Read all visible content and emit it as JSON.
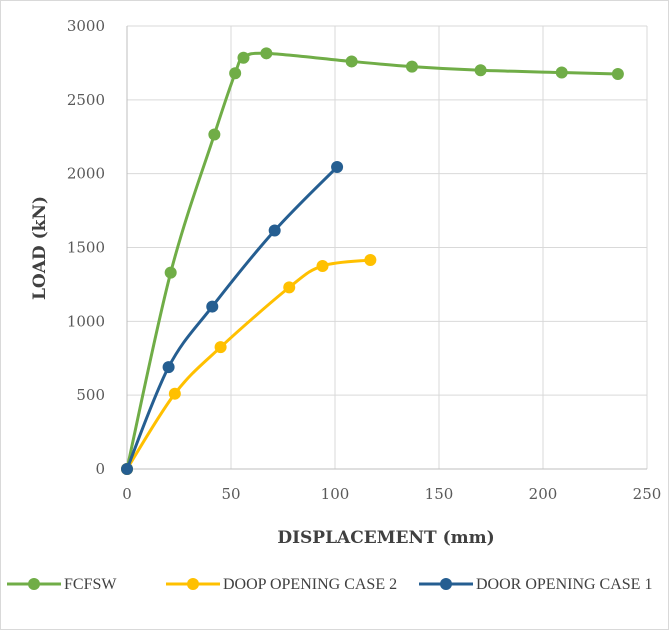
{
  "chart_data": {
    "type": "line",
    "title": "",
    "xlabel": "DISPLACEMENT (mm)",
    "ylabel": "LOAD (kN)",
    "xlim": [
      0,
      250
    ],
    "ylim": [
      0,
      3000
    ],
    "xticks": [
      0,
      50,
      100,
      150,
      200,
      250
    ],
    "yticks": [
      0,
      500,
      1000,
      1500,
      2000,
      2500,
      3000
    ],
    "grid": true,
    "legend_position": "bottom",
    "series": [
      {
        "name": "FCFSW",
        "color": "#70ad47",
        "x": [
          0,
          21,
          42,
          52,
          56,
          67,
          108,
          137,
          170,
          209,
          236
        ],
        "y": [
          0,
          1330,
          2265,
          2680,
          2785,
          2815,
          2760,
          2725,
          2700,
          2685,
          2675
        ]
      },
      {
        "name": "DOOP OPENING CASE 2",
        "color": "#ffc000",
        "x": [
          0,
          23,
          45,
          78,
          94,
          117
        ],
        "y": [
          0,
          510,
          825,
          1230,
          1375,
          1415
        ]
      },
      {
        "name": "DOOR OPENING CASE 1",
        "color": "#255e91",
        "x": [
          0,
          20,
          41,
          71,
          101
        ],
        "y": [
          0,
          690,
          1100,
          1615,
          2045
        ]
      }
    ]
  }
}
